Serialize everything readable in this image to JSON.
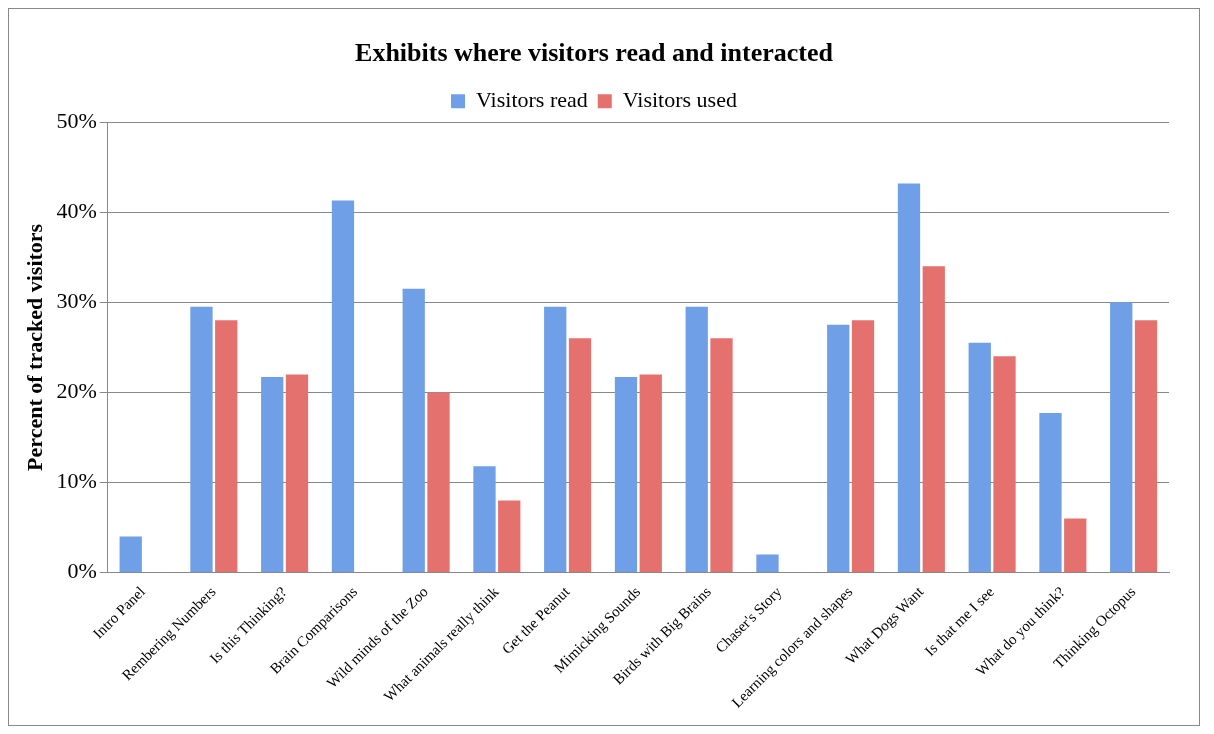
{
  "chart_data": {
    "type": "bar",
    "title": "Exhibits where visitors read and interacted",
    "ylabel": "Percent of tracked visitors",
    "categories": [
      "Intro Panel",
      "Rembering Numbers",
      "Is this Thinking?",
      "Brain Comparisons",
      "Wild minds of the Zoo",
      "What animals really think",
      "Get the Peanut",
      "Mimicking Sounds",
      "Birds with Big Brains",
      "Chaser's Story",
      "Learning colors and shapes",
      "What Dogs Want",
      "Is that me I see",
      "What do you think?",
      "Thinking Octopus"
    ],
    "series": [
      {
        "name": "Visitors read",
        "color": "#6f9fe6",
        "values": [
          4,
          29.5,
          21.7,
          41.3,
          31.5,
          11.8,
          29.5,
          21.7,
          29.5,
          2,
          27.5,
          43.2,
          25.5,
          17.7,
          30
        ]
      },
      {
        "name": "Visitors used",
        "color": "#e5716e",
        "values": [
          0,
          28,
          22,
          0,
          20,
          8,
          26,
          22,
          26,
          0,
          28,
          34,
          24,
          6,
          28
        ]
      }
    ],
    "ylim": [
      0,
      50
    ],
    "yticks": [
      {
        "value": 0,
        "label": "0%"
      },
      {
        "value": 10,
        "label": "10%"
      },
      {
        "value": 20,
        "label": "20%"
      },
      {
        "value": 30,
        "label": "30%"
      },
      {
        "value": 40,
        "label": "40%"
      },
      {
        "value": 50,
        "label": "50%"
      }
    ],
    "grid": "y",
    "legend": "top"
  }
}
